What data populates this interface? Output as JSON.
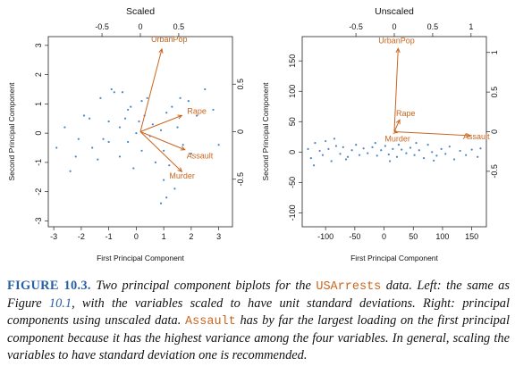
{
  "chart_data": [
    {
      "type": "scatter",
      "title": "Scaled",
      "xlabel": "First Principal Component",
      "ylabel": "Second Principal Component",
      "xlim": [
        -3.2,
        3.5
      ],
      "ylim": [
        -3.2,
        3.3
      ],
      "xticks": [
        -3,
        -2,
        -1,
        0,
        1,
        2,
        3
      ],
      "yticks": [
        -3,
        -2,
        -1,
        0,
        1,
        2,
        3
      ],
      "top_ticks": [
        -0.5,
        0.0,
        0.5
      ],
      "right_ticks": [
        -0.5,
        0.0,
        0.5
      ],
      "point_color": "#4a86c5",
      "loading_color": "#c8661f",
      "points": [
        [
          -2.4,
          -1.3
        ],
        [
          -2.1,
          -0.2
        ],
        [
          -1.7,
          0.5
        ],
        [
          -1.3,
          1.2
        ],
        [
          -0.9,
          1.5
        ],
        [
          -0.8,
          1.4
        ],
        [
          -0.5,
          1.4
        ],
        [
          -0.2,
          0.9
        ],
        [
          0.2,
          1.1
        ],
        [
          -1.2,
          -0.2
        ],
        [
          -1.0,
          0.4
        ],
        [
          -0.6,
          0.2
        ],
        [
          -0.4,
          0.5
        ],
        [
          -0.3,
          -0.3
        ],
        [
          0.0,
          0.0
        ],
        [
          0.3,
          0.6
        ],
        [
          0.6,
          0.3
        ],
        [
          0.9,
          0.1
        ],
        [
          1.1,
          0.7
        ],
        [
          1.3,
          0.9
        ],
        [
          1.5,
          0.2
        ],
        [
          1.7,
          -0.4
        ],
        [
          1.9,
          1.1
        ],
        [
          2.2,
          0.6
        ],
        [
          2.5,
          1.5
        ],
        [
          2.8,
          0.8
        ],
        [
          3.0,
          -0.4
        ],
        [
          1.0,
          -0.6
        ],
        [
          1.2,
          -1.1
        ],
        [
          0.7,
          -1.0
        ],
        [
          1.0,
          -1.6
        ],
        [
          1.1,
          -2.2
        ],
        [
          0.9,
          -2.4
        ],
        [
          1.4,
          -1.9
        ],
        [
          -2.9,
          -0.5
        ],
        [
          -2.6,
          0.2
        ],
        [
          -1.9,
          0.6
        ],
        [
          -1.4,
          -0.9
        ],
        [
          -1.6,
          -0.5
        ],
        [
          -0.6,
          -0.8
        ],
        [
          -0.1,
          -1.2
        ],
        [
          0.2,
          -0.6
        ],
        [
          0.5,
          -0.1
        ],
        [
          1.6,
          1.2
        ],
        [
          -0.3,
          0.8
        ],
        [
          0.4,
          1.2
        ],
        [
          -2.2,
          -0.8
        ],
        [
          -1.0,
          -0.3
        ],
        [
          2.0,
          -0.7
        ],
        [
          0.1,
          0.4
        ]
      ],
      "loadings": [
        {
          "name": "UrbanPop",
          "x": 0.28,
          "y": 0.87
        },
        {
          "name": "Rape",
          "x": 0.54,
          "y": 0.17
        },
        {
          "name": "Assault",
          "x": 0.58,
          "y": -0.19
        },
        {
          "name": "Murder",
          "x": 0.54,
          "y": -0.42
        }
      ]
    },
    {
      "type": "scatter",
      "title": "Unscaled",
      "xlabel": "First Principal Component",
      "ylabel": "Second Principal Component",
      "xlim": [
        -140,
        175
      ],
      "ylim": [
        -123,
        190
      ],
      "xticks": [
        -100,
        -50,
        0,
        50,
        100,
        150
      ],
      "yticks": [
        -100,
        -50,
        0,
        50,
        100,
        150
      ],
      "top_ticks": [
        -0.5,
        0.0,
        0.5,
        1.0
      ],
      "right_ticks": [
        -0.5,
        0.0,
        0.5,
        1.0
      ],
      "point_color": "#4a86c5",
      "loading_color": "#c8661f",
      "points": [
        [
          -125,
          -10
        ],
        [
          -118,
          15
        ],
        [
          -110,
          2
        ],
        [
          -105,
          -5
        ],
        [
          -95,
          5
        ],
        [
          -90,
          -15
        ],
        [
          -82,
          10
        ],
        [
          -75,
          -3
        ],
        [
          -70,
          8
        ],
        [
          -62,
          -8
        ],
        [
          -55,
          3
        ],
        [
          -48,
          12
        ],
        [
          -42,
          -5
        ],
        [
          -35,
          6
        ],
        [
          -28,
          -2
        ],
        [
          -20,
          8
        ],
        [
          -12,
          -6
        ],
        [
          -5,
          3
        ],
        [
          2,
          10
        ],
        [
          8,
          -4
        ],
        [
          15,
          5
        ],
        [
          22,
          -8
        ],
        [
          30,
          4
        ],
        [
          38,
          -2
        ],
        [
          45,
          7
        ],
        [
          52,
          -5
        ],
        [
          60,
          3
        ],
        [
          68,
          -10
        ],
        [
          75,
          12
        ],
        [
          82,
          0
        ],
        [
          90,
          -6
        ],
        [
          98,
          5
        ],
        [
          105,
          -3
        ],
        [
          112,
          9
        ],
        [
          120,
          -12
        ],
        [
          130,
          2
        ],
        [
          140,
          -5
        ],
        [
          150,
          4
        ],
        [
          160,
          -8
        ],
        [
          165,
          6
        ],
        [
          -130,
          5
        ],
        [
          -100,
          18
        ],
        [
          -65,
          -12
        ],
        [
          -15,
          15
        ],
        [
          25,
          12
        ],
        [
          55,
          15
        ],
        [
          85,
          -14
        ],
        [
          -120,
          -22
        ],
        [
          -85,
          22
        ],
        [
          10,
          -15
        ]
      ],
      "loadings": [
        {
          "name": "UrbanPop",
          "x": 0.05,
          "y": 1.05
        },
        {
          "name": "Rape",
          "x": 0.07,
          "y": 0.15
        },
        {
          "name": "Murder",
          "x": 0.04,
          "y": -0.01
        },
        {
          "name": "Assault",
          "x": 0.99,
          "y": -0.05
        }
      ]
    }
  ],
  "caption": {
    "label": "FIGURE 10.3.",
    "seg1": "Two principal component biplots for the",
    "code1": "USArrests",
    "seg2": "data. Left: the same as Figure",
    "ref": "10.1",
    "seg3": ", with the variables scaled to have unit standard deviations. Right: principal components using unscaled data.",
    "code2": "Assault",
    "seg4": "has by far the largest loading on the first principal component because it has the highest variance among the four variables. In general, scaling the variables to have standard deviation one is recommended."
  }
}
